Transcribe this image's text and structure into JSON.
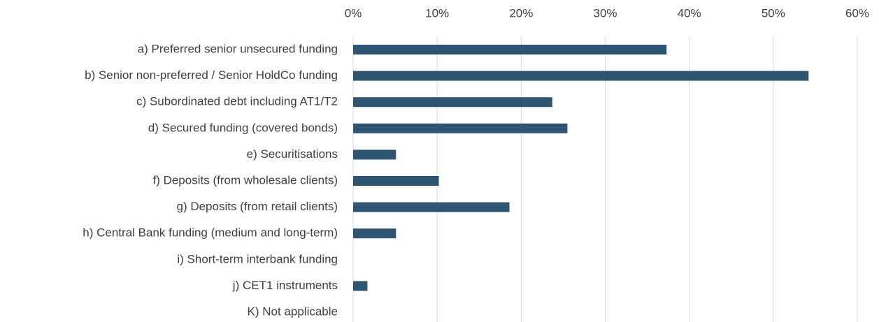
{
  "chart_data": {
    "type": "barh",
    "categories": [
      "a) Preferred senior unsecured funding",
      "b) Senior non-preferred / Senior HoldCo funding",
      "c) Subordinated debt including AT1/T2",
      "d) Secured funding (covered bonds)",
      "e) Securitisations",
      "f) Deposits (from wholesale clients)",
      "g) Deposits (from retail clients)",
      "h) Central Bank funding (medium and long-term)",
      "i) Short-term interbank funding",
      "j) CET1 instruments",
      "K) Not applicable"
    ],
    "values": [
      37.3,
      54.2,
      23.7,
      25.5,
      5.1,
      10.2,
      18.6,
      5.1,
      0,
      1.7,
      0
    ],
    "color": "#2e5572",
    "xlim": [
      0,
      60
    ],
    "xticks": [
      {
        "value": 0,
        "label": "0%"
      },
      {
        "value": 10,
        "label": "10%"
      },
      {
        "value": 20,
        "label": "20%"
      },
      {
        "value": 30,
        "label": "30%"
      },
      {
        "value": 40,
        "label": "40%"
      },
      {
        "value": 50,
        "label": "50%"
      },
      {
        "value": 60,
        "label": "60%"
      }
    ],
    "grid": true
  }
}
